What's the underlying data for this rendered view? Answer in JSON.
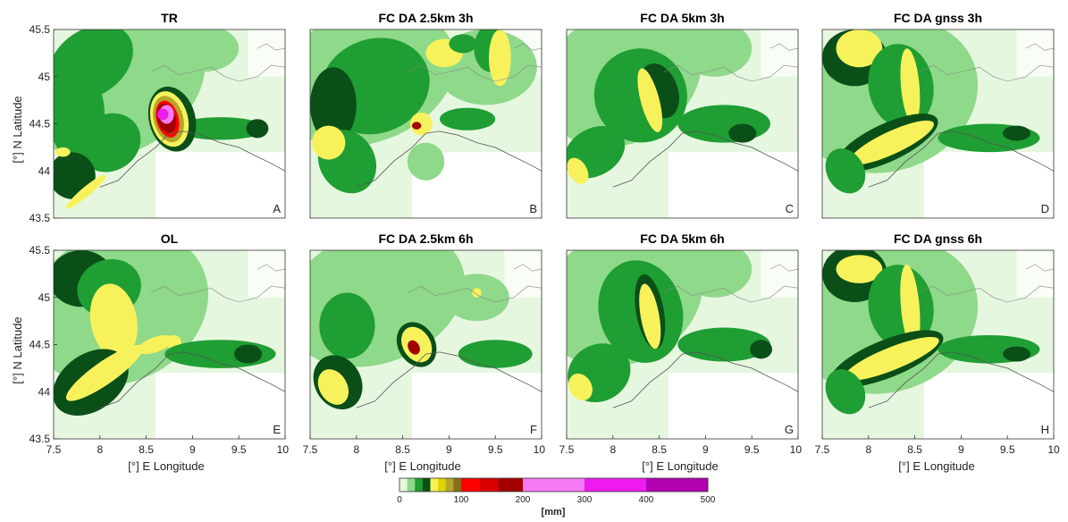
{
  "figure": {
    "ylabel": "[°] N Latitude",
    "xlabel": "[°] E Longitude"
  },
  "chart_data": {
    "type": "heatmap",
    "x_ticks": [
      "7.5",
      "8",
      "8.5",
      "9",
      "9.5",
      "10"
    ],
    "y_ticks": [
      "45.5",
      "45",
      "44.5",
      "44",
      "43.5"
    ],
    "xlim": [
      7.5,
      10
    ],
    "ylim": [
      43.5,
      45.5
    ],
    "panels": [
      {
        "title": "TR",
        "letter": "A"
      },
      {
        "title": "FC DA 2.5km 3h",
        "letter": "B"
      },
      {
        "title": "FC DA 5km 3h",
        "letter": "C"
      },
      {
        "title": "FC DA gnss 3h",
        "letter": "D"
      },
      {
        "title": "OL",
        "letter": "E"
      },
      {
        "title": "FC DA 2.5km 6h",
        "letter": "F"
      },
      {
        "title": "FC DA 5km 6h",
        "letter": "G"
      },
      {
        "title": "FC DA gnss 6h",
        "letter": "H"
      }
    ],
    "colorbar": {
      "unit": "[mm]",
      "ticks": [
        "0",
        "100",
        "200",
        "300",
        "400",
        "500"
      ],
      "tick_values": [
        0,
        100,
        200,
        300,
        400,
        500
      ],
      "range": [
        0,
        500
      ],
      "bins": [
        {
          "from": 0,
          "to": 10,
          "color": "#e6f7e0"
        },
        {
          "from": 10,
          "to": 20,
          "color": "#8fd98a"
        },
        {
          "from": 20,
          "to": 30,
          "color": "#1f9e33"
        },
        {
          "from": 30,
          "to": 40,
          "color": "#0a4f17"
        },
        {
          "from": 40,
          "to": 55,
          "color": "#f7f25c"
        },
        {
          "from": 55,
          "to": 70,
          "color": "#e3d400"
        },
        {
          "from": 70,
          "to": 85,
          "color": "#b4a62b"
        },
        {
          "from": 85,
          "to": 100,
          "color": "#8a6f1b"
        },
        {
          "from": 100,
          "to": 130,
          "color": "#ff0000"
        },
        {
          "from": 130,
          "to": 160,
          "color": "#d90000"
        },
        {
          "from": 160,
          "to": 200,
          "color": "#a30000"
        },
        {
          "from": 200,
          "to": 300,
          "color": "#f57af5"
        },
        {
          "from": 300,
          "to": 400,
          "color": "#ee1bee"
        },
        {
          "from": 400,
          "to": 500,
          "color": "#b000b0"
        }
      ]
    },
    "colors": {
      "background": "#ffffff",
      "very_light_green": "#e6f7e0",
      "light_green": "#8fd98a",
      "green": "#1f9e33",
      "dark_green": "#0a4f17",
      "yellow": "#f7f25c",
      "coastline": "#555555"
    }
  }
}
